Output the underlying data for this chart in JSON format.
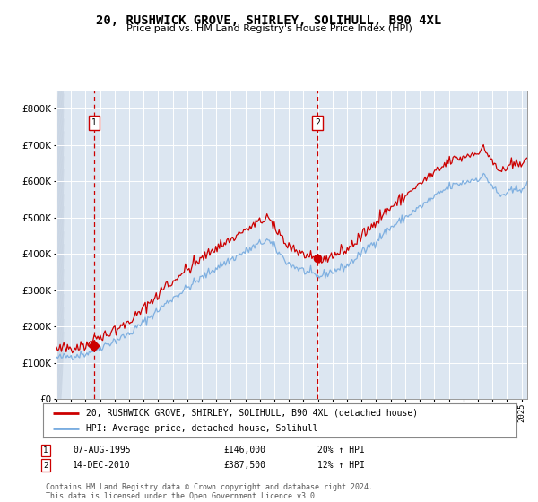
{
  "title": "20, RUSHWICK GROVE, SHIRLEY, SOLIHULL, B90 4XL",
  "subtitle": "Price paid vs. HM Land Registry's House Price Index (HPI)",
  "legend_line1": "20, RUSHWICK GROVE, SHIRLEY, SOLIHULL, B90 4XL (detached house)",
  "legend_line2": "HPI: Average price, detached house, Solihull",
  "transaction1_date": "07-AUG-1995",
  "transaction1_price": 146000,
  "transaction1_pct": "20%",
  "transaction2_date": "14-DEC-2010",
  "transaction2_price": 387500,
  "transaction2_pct": "12%",
  "footer": "Contains HM Land Registry data © Crown copyright and database right 2024.\nThis data is licensed under the Open Government Licence v3.0.",
  "ylim": [
    0,
    850000
  ],
  "yticks": [
    0,
    100000,
    200000,
    300000,
    400000,
    500000,
    600000,
    700000,
    800000
  ],
  "hpi_color": "#7aade0",
  "price_color": "#cc0000",
  "bg_color": "#dce6f1",
  "grid_color": "#ffffff",
  "vline_color": "#cc0000",
  "transaction1_year": 1995.58,
  "transaction2_year": 2010.95,
  "start_year": 1993,
  "end_year": 2025.4
}
